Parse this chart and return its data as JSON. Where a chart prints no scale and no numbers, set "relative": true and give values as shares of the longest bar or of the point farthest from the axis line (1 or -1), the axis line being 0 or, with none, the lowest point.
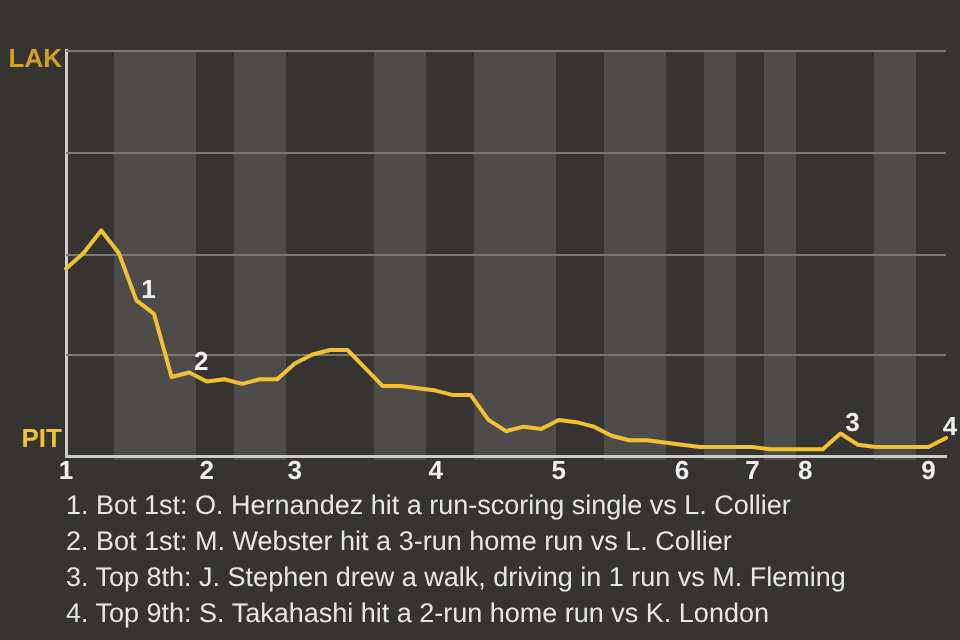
{
  "chart_data": {
    "type": "line",
    "relative": true,
    "categories": [
      "1",
      null,
      null,
      null,
      null,
      null,
      null,
      null,
      "2",
      null,
      null,
      null,
      null,
      "3",
      null,
      null,
      null,
      null,
      null,
      null,
      null,
      "4",
      null,
      null,
      null,
      null,
      null,
      null,
      "5",
      null,
      null,
      null,
      null,
      null,
      null,
      "6",
      null,
      null,
      null,
      "7",
      null,
      null,
      "8",
      null,
      null,
      null,
      null,
      null,
      null,
      "9",
      null
    ],
    "series": [
      {
        "color": "#f2c12e",
        "values": [
          0.83,
          0.9,
          1,
          0.9,
          0.69,
          0.63,
          0.35,
          0.37,
          0.33,
          0.34,
          0.32,
          0.34,
          0.34,
          0.41,
          0.45,
          0.47,
          0.47,
          0.39,
          0.31,
          0.31,
          0.3,
          0.29,
          0.27,
          0.27,
          0.16,
          0.11,
          0.13,
          0.12,
          0.16,
          0.15,
          0.13,
          0.09,
          0.07,
          0.07,
          0.06,
          0.05,
          0.04,
          0.04,
          0.04,
          0.04,
          0.03,
          0.03,
          0.03,
          0.03,
          0.1,
          0.05,
          0.04,
          0.04,
          0.04,
          0.04,
          0.08
        ]
      }
    ],
    "ref_lines": [
      {
        "axis": "y",
        "value": 0.45,
        "label": null,
        "color": "#7a7876"
      },
      {
        "axis": "y",
        "value": 0.9,
        "label": null,
        "color": "#7a7876"
      },
      {
        "axis": "y",
        "value": 1.35,
        "label": null,
        "color": "#7a7876"
      },
      {
        "axis": "y",
        "value": 1.8,
        "label": null,
        "color": "#7a7876"
      }
    ],
    "legend": false,
    "marker": "none",
    "line_style": "solid",
    "annotations": [
      {
        "text": "1",
        "y": 0.69
      },
      {
        "text": "2",
        "y": 0.37
      },
      {
        "text": "3",
        "y": 0.1
      },
      {
        "text": "4",
        "y": 0.08
      },
      "LAK",
      "PIT",
      "1. Bot 1st: O. Hernandez hit a run-scoring single vs L. Collier",
      "2. Bot 1st: M. Webster hit a 3-run home run vs L. Collier",
      "3. Top 8th: J. Stephen drew a walk, driving in 1 run vs M. Fleming",
      "4. Top 9th: S. Takahashi hit a 2-run home run vs K. London"
    ]
  }
}
